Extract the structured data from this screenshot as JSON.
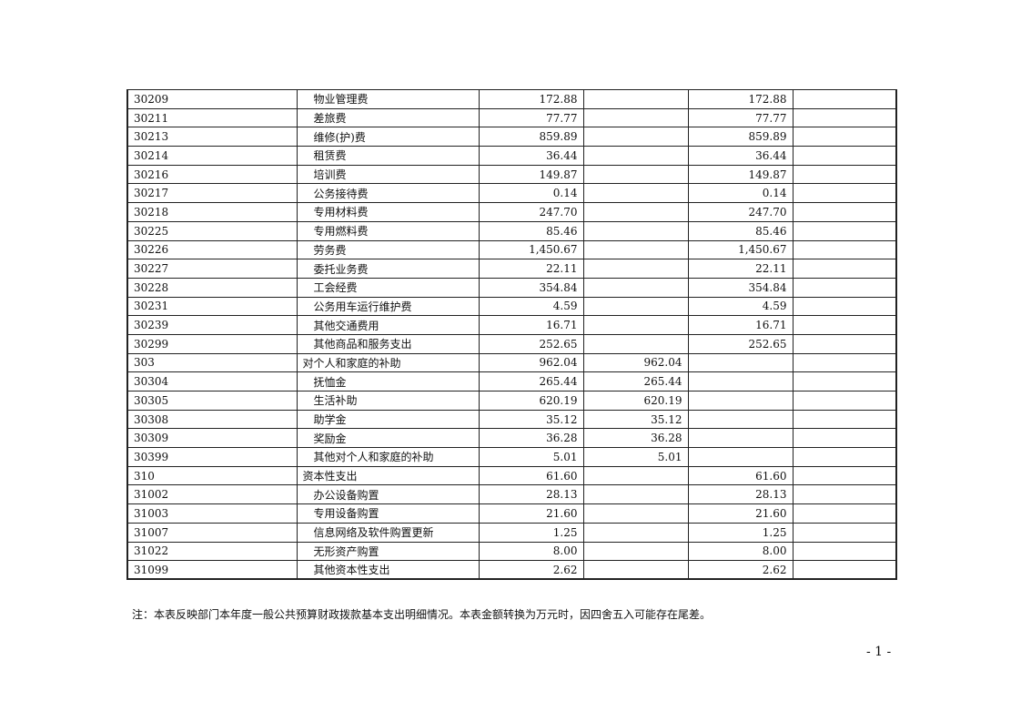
{
  "rows": [
    {
      "code": "30209",
      "name": "物业管理费",
      "sub": true,
      "total": "172.88",
      "personnel": "",
      "public": "172.88"
    },
    {
      "code": "30211",
      "name": "差旅费",
      "sub": true,
      "total": "77.77",
      "personnel": "",
      "public": "77.77"
    },
    {
      "code": "30213",
      "name": "维修(护)费",
      "sub": true,
      "total": "859.89",
      "personnel": "",
      "public": "859.89"
    },
    {
      "code": "30214",
      "name": "租赁费",
      "sub": true,
      "total": "36.44",
      "personnel": "",
      "public": "36.44"
    },
    {
      "code": "30216",
      "name": "培训费",
      "sub": true,
      "total": "149.87",
      "personnel": "",
      "public": "149.87"
    },
    {
      "code": "30217",
      "name": "公务接待费",
      "sub": true,
      "total": "0.14",
      "personnel": "",
      "public": "0.14"
    },
    {
      "code": "30218",
      "name": "专用材料费",
      "sub": true,
      "total": "247.70",
      "personnel": "",
      "public": "247.70"
    },
    {
      "code": "30225",
      "name": "专用燃料费",
      "sub": true,
      "total": "85.46",
      "personnel": "",
      "public": "85.46"
    },
    {
      "code": "30226",
      "name": "劳务费",
      "sub": true,
      "total": "1,450.67",
      "personnel": "",
      "public": "1,450.67"
    },
    {
      "code": "30227",
      "name": "委托业务费",
      "sub": true,
      "total": "22.11",
      "personnel": "",
      "public": "22.11"
    },
    {
      "code": "30228",
      "name": "工会经费",
      "sub": true,
      "total": "354.84",
      "personnel": "",
      "public": "354.84"
    },
    {
      "code": "30231",
      "name": "公务用车运行维护费",
      "sub": true,
      "total": "4.59",
      "personnel": "",
      "public": "4.59"
    },
    {
      "code": "30239",
      "name": "其他交通费用",
      "sub": true,
      "total": "16.71",
      "personnel": "",
      "public": "16.71"
    },
    {
      "code": "30299",
      "name": "其他商品和服务支出",
      "sub": true,
      "total": "252.65",
      "personnel": "",
      "public": "252.65"
    },
    {
      "code": "303",
      "name": "对个人和家庭的补助",
      "sub": false,
      "total": "962.04",
      "personnel": "962.04",
      "public": ""
    },
    {
      "code": "30304",
      "name": "抚恤金",
      "sub": true,
      "total": "265.44",
      "personnel": "265.44",
      "public": ""
    },
    {
      "code": "30305",
      "name": "生活补助",
      "sub": true,
      "total": "620.19",
      "personnel": "620.19",
      "public": ""
    },
    {
      "code": "30308",
      "name": "助学金",
      "sub": true,
      "total": "35.12",
      "personnel": "35.12",
      "public": ""
    },
    {
      "code": "30309",
      "name": "奖励金",
      "sub": true,
      "total": "36.28",
      "personnel": "36.28",
      "public": ""
    },
    {
      "code": "30399",
      "name": "其他对个人和家庭的补助",
      "sub": true,
      "total": "5.01",
      "personnel": "5.01",
      "public": ""
    },
    {
      "code": "310",
      "name": "资本性支出",
      "sub": false,
      "total": "61.60",
      "personnel": "",
      "public": "61.60"
    },
    {
      "code": "31002",
      "name": "办公设备购置",
      "sub": true,
      "total": "28.13",
      "personnel": "",
      "public": "28.13"
    },
    {
      "code": "31003",
      "name": "专用设备购置",
      "sub": true,
      "total": "21.60",
      "personnel": "",
      "public": "21.60"
    },
    {
      "code": "31007",
      "name": "信息网络及软件购置更新",
      "sub": true,
      "total": "1.25",
      "personnel": "",
      "public": "1.25"
    },
    {
      "code": "31022",
      "name": "无形资产购置",
      "sub": true,
      "total": "8.00",
      "personnel": "",
      "public": "8.00"
    },
    {
      "code": "31099",
      "name": "其他资本性支出",
      "sub": true,
      "total": "2.62",
      "personnel": "",
      "public": "2.62"
    }
  ],
  "note": "注：本表反映部门本年度一般公共预算财政拨款基本支出明细情况。本表金额转换为万元时，因四舍五入可能存在尾差。",
  "page_number": "- 1 -"
}
